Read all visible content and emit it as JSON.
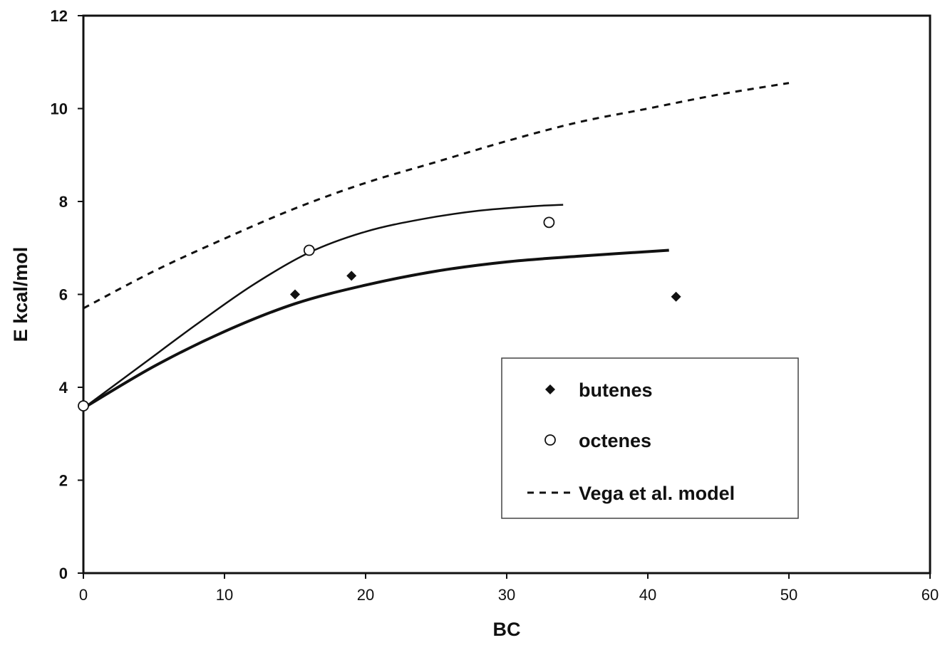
{
  "chart_data": {
    "type": "scatter",
    "xlabel": "BC",
    "ylabel": "E kcal/mol",
    "xlim": [
      0,
      60
    ],
    "ylim": [
      0,
      12
    ],
    "xticks": [
      "0",
      "10",
      "20",
      "30",
      "40",
      "50",
      "60"
    ],
    "yticks": [
      "0",
      "2",
      "4",
      "6",
      "8",
      "10",
      "12"
    ],
    "grid": false,
    "legend_position": "lower-right",
    "series": [
      {
        "name": "butenes",
        "kind": "points",
        "marker": "filled-diamond",
        "color": "#111111",
        "x": [
          15,
          19,
          42
        ],
        "y": [
          6.0,
          6.4,
          5.95
        ]
      },
      {
        "name": "octenes",
        "kind": "points",
        "marker": "open-circle",
        "color": "#111111",
        "x": [
          0,
          16,
          33
        ],
        "y": [
          3.6,
          6.95,
          7.55
        ]
      },
      {
        "name": "Vega et al. model",
        "kind": "line",
        "style": "dashed",
        "color": "#111111",
        "x": [
          0,
          5,
          10,
          15,
          20,
          25,
          30,
          35,
          40,
          45,
          50
        ],
        "y": [
          5.7,
          6.5,
          7.2,
          7.85,
          8.4,
          8.85,
          9.3,
          9.7,
          10.0,
          10.3,
          10.55
        ]
      }
    ],
    "fits": [
      {
        "label_for": "octenes",
        "kind": "line",
        "style": "solid-thin",
        "x": [
          0,
          4,
          8,
          12,
          16,
          20,
          24,
          28,
          32,
          34
        ],
        "y": [
          3.55,
          4.45,
          5.35,
          6.2,
          6.9,
          7.35,
          7.62,
          7.8,
          7.9,
          7.93
        ]
      },
      {
        "label_for": "butenes",
        "kind": "line",
        "style": "solid-thick",
        "x": [
          0,
          5,
          10,
          15,
          20,
          25,
          30,
          35,
          41.5
        ],
        "y": [
          3.55,
          4.45,
          5.2,
          5.8,
          6.2,
          6.5,
          6.7,
          6.82,
          6.95
        ]
      }
    ]
  }
}
